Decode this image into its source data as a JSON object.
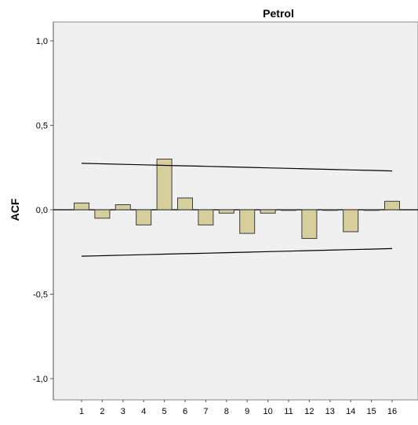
{
  "chart_data": {
    "type": "bar",
    "title": "Petrol",
    "xlabel": "",
    "ylabel": "ACF",
    "ylim": [
      -1.0,
      1.0
    ],
    "yticks": [
      {
        "value": 1.0,
        "label": "1,0"
      },
      {
        "value": 0.5,
        "label": "0,5"
      },
      {
        "value": 0.0,
        "label": "0,0"
      },
      {
        "value": -0.5,
        "label": "-0,5"
      },
      {
        "value": -1.0,
        "label": "-1,0"
      }
    ],
    "categories": [
      "1",
      "2",
      "3",
      "4",
      "5",
      "6",
      "7",
      "8",
      "9",
      "10",
      "11",
      "12",
      "13",
      "14",
      "15",
      "16"
    ],
    "values": [
      0.04,
      -0.05,
      0.03,
      -0.09,
      0.3,
      0.07,
      -0.09,
      -0.02,
      -0.14,
      -0.02,
      0.0,
      -0.17,
      0.0,
      -0.13,
      0.0,
      0.05
    ],
    "confidence_limits": {
      "upper": [
        0.275,
        0.272,
        0.269,
        0.266,
        0.263,
        0.26,
        0.257,
        0.254,
        0.251,
        0.248,
        0.245,
        0.242,
        0.239,
        0.236,
        0.233,
        0.23
      ],
      "lower": [
        -0.275,
        -0.272,
        -0.269,
        -0.266,
        -0.263,
        -0.26,
        -0.257,
        -0.254,
        -0.251,
        -0.248,
        -0.245,
        -0.242,
        -0.239,
        -0.236,
        -0.233,
        -0.23
      ]
    },
    "grid": false,
    "colors": {
      "bar_fill": "#d6cf9c",
      "bar_stroke": "#3a3a3a",
      "plot_background": "#f0f0f0",
      "line": "#000000"
    }
  }
}
